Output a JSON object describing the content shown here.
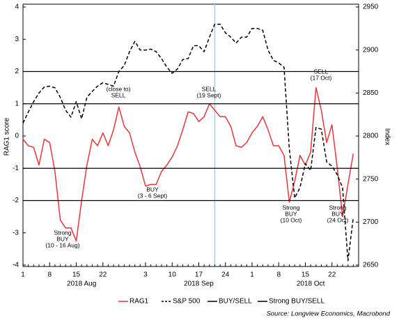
{
  "chart_data": {
    "type": "line",
    "y_label": "RAG1 score",
    "y2_label": "Index",
    "source": "Source: Longview Economics, Macrobond",
    "categories": [
      "1",
      null,
      null,
      null,
      null,
      "8",
      null,
      null,
      null,
      null,
      "15",
      null,
      null,
      null,
      null,
      "22",
      null,
      null,
      null,
      null,
      null,
      null,
      null,
      "3",
      null,
      null,
      null,
      null,
      "10",
      null,
      null,
      null,
      null,
      "17",
      null,
      null,
      null,
      null,
      "24",
      null,
      null,
      null,
      null,
      "1",
      null,
      null,
      null,
      null,
      "8",
      null,
      null,
      null,
      null,
      "15",
      null,
      null,
      null,
      null,
      "22",
      null,
      null,
      null,
      null
    ],
    "month_labels": [
      "2018 Aug",
      "2018 Sep",
      "2018 Oct"
    ],
    "ylim": [
      -4,
      4
    ],
    "yticks": [
      -4,
      -3,
      -2,
      -1,
      0,
      1,
      2,
      3,
      4
    ],
    "y2lim": [
      2650,
      2950
    ],
    "y2ticks": [
      2650,
      2700,
      2750,
      2800,
      2850,
      2900,
      2950
    ],
    "vline": {
      "x": 36,
      "color": "#a9cfe8"
    },
    "series": [
      {
        "name": "RAG1",
        "color": "#e8343a",
        "values": [
          -0.1,
          -0.3,
          -0.35,
          -0.9,
          -0.1,
          -0.2,
          -1.1,
          -2.6,
          -2.85,
          -2.85,
          -3.25,
          -2.0,
          -0.9,
          -0.1,
          -0.3,
          0.1,
          -0.3,
          0.2,
          0.9,
          0.3,
          0.1,
          -0.5,
          -0.95,
          -1.55,
          -1.5,
          -1.5,
          -1.1,
          -0.9,
          -0.65,
          -0.3,
          0.2,
          0.75,
          0.7,
          0.45,
          0.6,
          1.0,
          0.8,
          0.6,
          0.6,
          0.3,
          -0.3,
          -0.35,
          -0.2,
          0.1,
          0.3,
          0.6,
          0.2,
          -0.3,
          -0.3,
          -0.6,
          -2.05,
          -1.4,
          -0.6,
          -0.9,
          -0.5,
          1.5,
          0.8,
          -0.2,
          0.35,
          -1.0,
          -2.5,
          -1.5,
          -0.55
        ]
      },
      {
        "name": "S&P 500",
        "color": "#000000",
        "dashed": true,
        "axis": "y2",
        "values": [
          2815,
          2828,
          2840,
          2850,
          2857,
          2858,
          2856,
          2845,
          2830,
          2822,
          2840,
          2820,
          2845,
          2852,
          2858,
          2862,
          2860,
          2858,
          2875,
          2882,
          2898,
          2910,
          2900,
          2900,
          2901,
          2898,
          2890,
          2880,
          2873,
          2878,
          2889,
          2890,
          2905,
          2905,
          2898,
          2915,
          2930,
          2930,
          2920,
          2915,
          2908,
          2915,
          2915,
          2925,
          2925,
          2923,
          2900,
          2888,
          2885,
          2880,
          2785,
          2728,
          2740,
          2768,
          2760,
          2810,
          2808,
          2770,
          2765,
          2755,
          2740,
          2655,
          2705
        ]
      },
      {
        "name": "BUY/SELL",
        "color": "#000000",
        "levels": [
          1,
          -1
        ]
      },
      {
        "name": "Strong BUY/SELL",
        "color": "#000000",
        "levels": [
          2,
          -2
        ]
      }
    ],
    "annotations": [
      {
        "text": [
          "(close to)",
          "SELL"
        ]
      },
      {
        "text": [
          "SELL",
          "(19 Sept)"
        ]
      },
      {
        "text": [
          "BUY",
          "(3 - 6 Sept)"
        ]
      },
      {
        "text": [
          "Strong",
          "BUY",
          "(10 - 16 Aug)"
        ]
      },
      {
        "text": [
          "Strong",
          "BUY",
          "(10 Oct)"
        ]
      },
      {
        "text": [
          "SELL",
          "(17 Oct)"
        ]
      },
      {
        "text": [
          "Strong",
          "BUY",
          "(24 Oct)"
        ]
      }
    ]
  }
}
